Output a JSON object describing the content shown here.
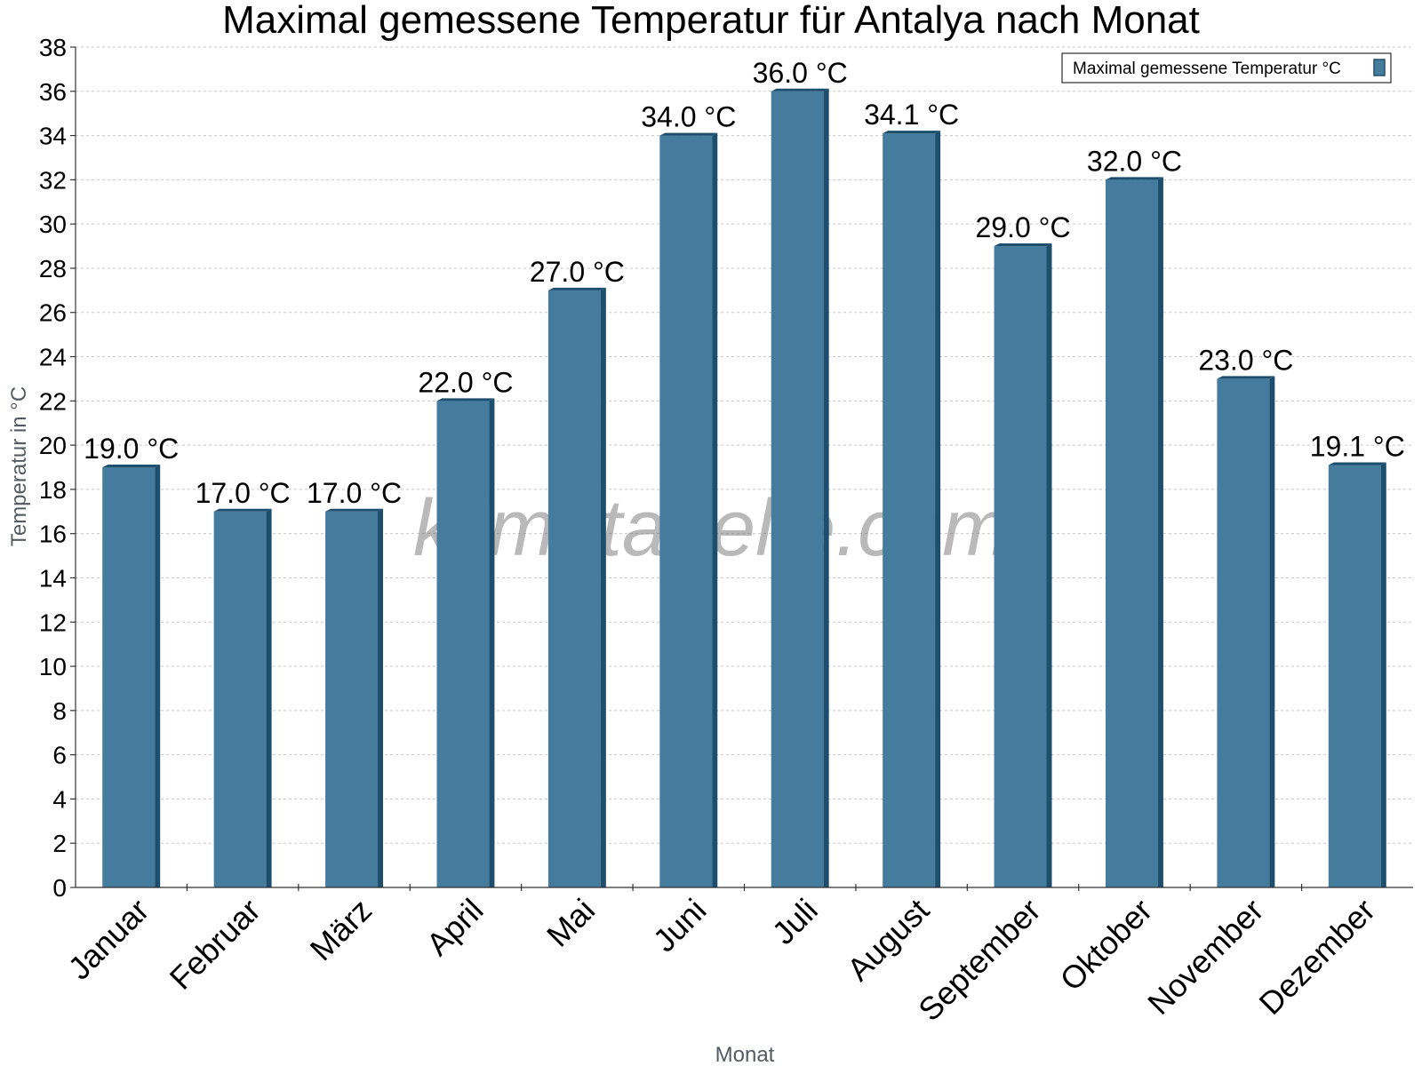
{
  "chart_data": {
    "type": "bar",
    "title": "Maximal gemessene Temperatur für Antalya nach Monat",
    "xlabel": "Monat",
    "ylabel": "Temperatur in °C",
    "ylim": [
      0,
      38
    ],
    "ytick_step": 2,
    "grid": true,
    "legend_position": "top-right",
    "watermark": "klimatabelle.com",
    "categories": [
      "Januar",
      "Februar",
      "März",
      "April",
      "Mai",
      "Juni",
      "Juli",
      "August",
      "September",
      "Oktober",
      "November",
      "Dezember"
    ],
    "series": [
      {
        "name": "Maximal gemessene Temperatur °C",
        "color": "#457b9d",
        "side_color": "#1d4e6e",
        "values": [
          19.0,
          17.0,
          17.0,
          22.0,
          27.0,
          34.0,
          36.0,
          34.1,
          29.0,
          32.0,
          23.0,
          19.1
        ],
        "labels": [
          "19.0 °C",
          "17.0 °C",
          "17.0 °C",
          "22.0 °C",
          "27.0 °C",
          "34.0 °C",
          "36.0 °C",
          "34.1 °C",
          "29.0 °C",
          "32.0 °C",
          "23.0 °C",
          "19.1 °C"
        ]
      }
    ]
  }
}
